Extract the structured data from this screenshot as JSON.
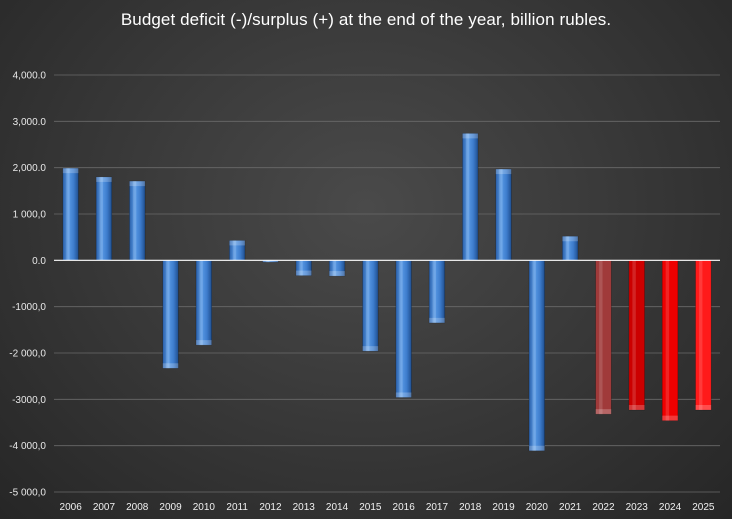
{
  "chart_data": {
    "type": "bar",
    "title": "Budget deficit (-)/surplus (+) at the end of the year, billion rubles.",
    "categories": [
      "2006",
      "2007",
      "2008",
      "2009",
      "2010",
      "2011",
      "2012",
      "2013",
      "2014",
      "2015",
      "2016",
      "2017",
      "2018",
      "2019",
      "2020",
      "2021",
      "2022",
      "2023",
      "2024",
      "2025"
    ],
    "values": [
      1990,
      1800,
      1710,
      -2330,
      -1830,
      430,
      -40,
      -330,
      -340,
      -1960,
      -2960,
      -1350,
      2740,
      1970,
      -4110,
      520,
      -3320,
      -3230,
      -3460,
      -3230
    ],
    "bar_colors": [
      "#3f7fd0",
      "#3f7fd0",
      "#3f7fd0",
      "#3f7fd0",
      "#3f7fd0",
      "#3f7fd0",
      "#3f7fd0",
      "#3f7fd0",
      "#3f7fd0",
      "#3f7fd0",
      "#3f7fd0",
      "#3f7fd0",
      "#3f7fd0",
      "#3f7fd0",
      "#3f7fd0",
      "#3f7fd0",
      "#a03a3a",
      "#cc0000",
      "#ee0000",
      "#ff1a1a"
    ],
    "ylim": [
      -5000,
      4000
    ],
    "yticks": [
      {
        "value": 4000,
        "label": "4,000.0"
      },
      {
        "value": 3000,
        "label": "3,000.0"
      },
      {
        "value": 2000,
        "label": "2,000.0"
      },
      {
        "value": 1000,
        "label": "1 000,0"
      },
      {
        "value": 0,
        "label": "0.0"
      },
      {
        "value": -1000,
        "label": "-1000,0"
      },
      {
        "value": -2000,
        "label": "-2 000,0"
      },
      {
        "value": -3000,
        "label": "-3000,0"
      },
      {
        "value": -4000,
        "label": "-4 000,0"
      },
      {
        "value": -5000,
        "label": "-5 000,0"
      }
    ],
    "xlabel": "",
    "ylabel": "",
    "grid": true,
    "legend": "none",
    "gridline_color": "#6a6a6a",
    "zero_line_color": "#ffffff"
  }
}
